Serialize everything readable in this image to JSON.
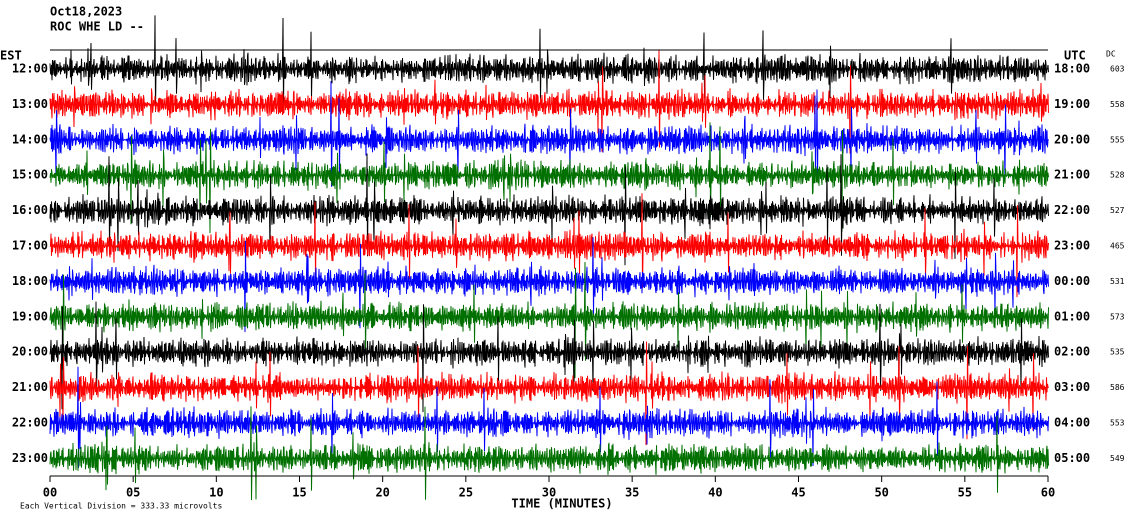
{
  "header": {
    "date": "Oct18,2023",
    "station": "ROC WHE LD --"
  },
  "left_label": "EST",
  "right_label": "UTC",
  "dc_label": "DC",
  "rows": [
    {
      "est": "12:00",
      "utc": "18:00",
      "dc": "603",
      "color": "#000000"
    },
    {
      "est": "13:00",
      "utc": "19:00",
      "dc": "558",
      "color": "#ff0000"
    },
    {
      "est": "14:00",
      "utc": "20:00",
      "dc": "555",
      "color": "#0000ff"
    },
    {
      "est": "15:00",
      "utc": "21:00",
      "dc": "528",
      "color": "#007000"
    },
    {
      "est": "16:00",
      "utc": "22:00",
      "dc": "527",
      "color": "#000000"
    },
    {
      "est": "17:00",
      "utc": "23:00",
      "dc": "465",
      "color": "#ff0000"
    },
    {
      "est": "18:00",
      "utc": "00:00",
      "dc": "531",
      "color": "#0000ff"
    },
    {
      "est": "19:00",
      "utc": "01:00",
      "dc": "573",
      "color": "#007000"
    },
    {
      "est": "20:00",
      "utc": "02:00",
      "dc": "535",
      "color": "#000000"
    },
    {
      "est": "21:00",
      "utc": "03:00",
      "dc": "586",
      "color": "#ff0000"
    },
    {
      "est": "22:00",
      "utc": "04:00",
      "dc": "553",
      "color": "#0000ff"
    },
    {
      "est": "23:00",
      "utc": "05:00",
      "dc": "549",
      "color": "#007000"
    }
  ],
  "x_axis": {
    "title": "TIME (MINUTES)",
    "xlim": [
      0,
      60
    ],
    "xticks": [
      {
        "value": 0,
        "label": "00"
      },
      {
        "value": 5,
        "label": "05"
      },
      10,
      15,
      20,
      25,
      30,
      35,
      40,
      45,
      50,
      55,
      60
    ]
  },
  "footer": "Each Vertical Division =  333.33 microvolts"
}
